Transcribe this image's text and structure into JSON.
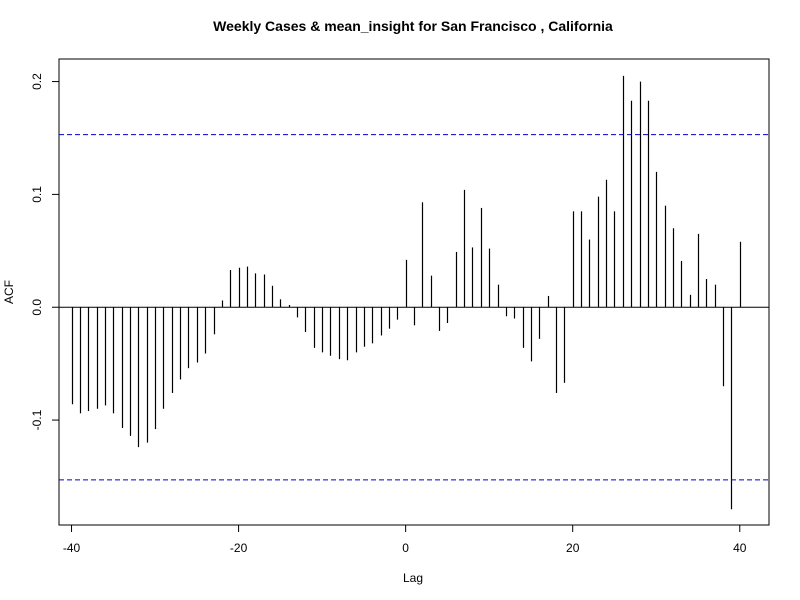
{
  "chart_data": {
    "type": "bar",
    "title": "Weekly Cases & mean_insight for San Francisco , California",
    "xlabel": "Lag",
    "ylabel": "ACF",
    "xlim": [
      -41.5,
      43.5
    ],
    "ylim": [
      -0.193,
      0.22
    ],
    "x_ticks": [
      -40,
      -20,
      0,
      20,
      40
    ],
    "x_tick_labels": [
      "-40",
      "-20",
      "0",
      "20",
      "40"
    ],
    "y_ticks": [
      -0.1,
      0.0,
      0.1,
      0.2
    ],
    "y_tick_labels": [
      "-0.1",
      "0.0",
      "0.1",
      "0.2"
    ],
    "confidence_bounds": [
      0.153,
      -0.153
    ],
    "bar_color": "#000000",
    "bound_color": "#0000cc",
    "lags": [
      -40,
      -39,
      -38,
      -37,
      -36,
      -35,
      -34,
      -33,
      -32,
      -31,
      -30,
      -29,
      -28,
      -27,
      -26,
      -25,
      -24,
      -23,
      -22,
      -21,
      -20,
      -19,
      -18,
      -17,
      -16,
      -15,
      -14,
      -13,
      -12,
      -11,
      -10,
      -9,
      -8,
      -7,
      -6,
      -5,
      -4,
      -3,
      -2,
      -1,
      0,
      1,
      2,
      3,
      4,
      5,
      6,
      7,
      8,
      9,
      10,
      11,
      12,
      13,
      14,
      15,
      16,
      17,
      18,
      19,
      20,
      21,
      22,
      23,
      24,
      25,
      26,
      27,
      28,
      29,
      30,
      31,
      32,
      33,
      34,
      35,
      36,
      37,
      38,
      39,
      40
    ],
    "values": [
      -0.086,
      -0.094,
      -0.092,
      -0.09,
      -0.087,
      -0.094,
      -0.107,
      -0.114,
      -0.124,
      -0.12,
      -0.108,
      -0.09,
      -0.076,
      -0.064,
      -0.054,
      -0.049,
      -0.041,
      -0.024,
      0.006,
      0.033,
      0.035,
      0.036,
      0.03,
      0.029,
      0.019,
      0.007,
      0.002,
      -0.009,
      -0.022,
      -0.036,
      -0.04,
      -0.043,
      -0.046,
      -0.047,
      -0.04,
      -0.035,
      -0.032,
      -0.025,
      -0.019,
      -0.011,
      0.042,
      -0.016,
      0.093,
      0.028,
      -0.021,
      -0.014,
      0.049,
      0.104,
      0.053,
      0.088,
      0.052,
      0.02,
      -0.008,
      -0.01,
      -0.036,
      -0.048,
      -0.028,
      0.01,
      -0.076,
      -0.067,
      0.085,
      0.085,
      0.06,
      0.098,
      0.113,
      0.085,
      0.205,
      0.183,
      0.2,
      0.183,
      0.12,
      0.09,
      0.07,
      0.041,
      0.011,
      0.065,
      0.025,
      0.02,
      -0.07,
      -0.179,
      0.058
    ]
  }
}
